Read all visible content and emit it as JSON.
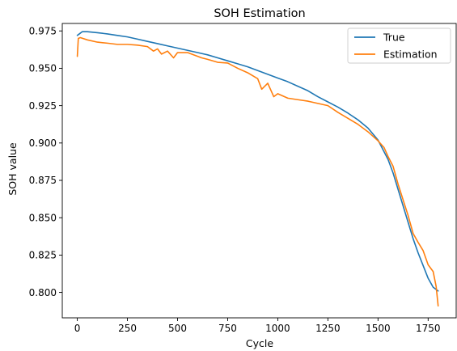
{
  "chart_data": {
    "type": "line",
    "title": "SOH Estimation",
    "xlabel": "Cycle",
    "ylabel": "SOH value",
    "xlim": [
      -75,
      1890
    ],
    "ylim": [
      0.783,
      0.98
    ],
    "xticks": [
      0,
      250,
      500,
      750,
      1000,
      1250,
      1500,
      1750
    ],
    "yticks": [
      0.8,
      0.825,
      0.85,
      0.875,
      0.9,
      0.925,
      0.95,
      0.975
    ],
    "ytick_labels": [
      "0.800",
      "0.825",
      "0.850",
      "0.875",
      "0.900",
      "0.925",
      "0.950",
      "0.975"
    ],
    "grid": false,
    "legend": "top-right",
    "series": [
      {
        "name": "True",
        "color": "#1f77b4",
        "x": [
          0,
          10,
          25,
          50,
          100,
          150,
          200,
          250,
          300,
          350,
          400,
          450,
          500,
          550,
          600,
          650,
          700,
          750,
          800,
          850,
          900,
          950,
          1000,
          1050,
          1100,
          1150,
          1200,
          1250,
          1300,
          1350,
          1400,
          1450,
          1500,
          1550,
          1575,
          1600,
          1625,
          1650,
          1675,
          1700,
          1725,
          1750,
          1775,
          1800
        ],
        "y": [
          0.972,
          0.973,
          0.9745,
          0.9745,
          0.9738,
          0.973,
          0.972,
          0.971,
          0.9695,
          0.968,
          0.9665,
          0.965,
          0.9635,
          0.962,
          0.9605,
          0.959,
          0.957,
          0.955,
          0.953,
          0.951,
          0.9485,
          0.946,
          0.9435,
          0.941,
          0.938,
          0.935,
          0.931,
          0.9275,
          0.924,
          0.92,
          0.9155,
          0.91,
          0.902,
          0.889,
          0.88,
          0.869,
          0.858,
          0.847,
          0.836,
          0.8265,
          0.818,
          0.8095,
          0.8035,
          0.801
        ]
      },
      {
        "name": "Estimation",
        "color": "#ff7f0e",
        "x": [
          0,
          5,
          15,
          50,
          100,
          150,
          200,
          250,
          300,
          350,
          380,
          400,
          420,
          450,
          480,
          500,
          550,
          600,
          620,
          650,
          700,
          750,
          800,
          850,
          900,
          920,
          950,
          980,
          1000,
          1050,
          1100,
          1150,
          1200,
          1250,
          1300,
          1350,
          1400,
          1450,
          1500,
          1530,
          1550,
          1575,
          1600,
          1625,
          1650,
          1675,
          1700,
          1725,
          1750,
          1775,
          1790,
          1800
        ],
        "y": [
          0.958,
          0.97,
          0.9705,
          0.969,
          0.9675,
          0.9668,
          0.966,
          0.966,
          0.9655,
          0.9645,
          0.9615,
          0.963,
          0.9595,
          0.9615,
          0.957,
          0.9605,
          0.9605,
          0.958,
          0.957,
          0.956,
          0.954,
          0.9535,
          0.95,
          0.947,
          0.943,
          0.936,
          0.94,
          0.931,
          0.933,
          0.93,
          0.929,
          0.928,
          0.9265,
          0.925,
          0.9205,
          0.9165,
          0.9125,
          0.9075,
          0.9015,
          0.897,
          0.891,
          0.8845,
          0.8725,
          0.862,
          0.8515,
          0.8395,
          0.8335,
          0.828,
          0.8185,
          0.814,
          0.804,
          0.791
        ]
      }
    ]
  }
}
